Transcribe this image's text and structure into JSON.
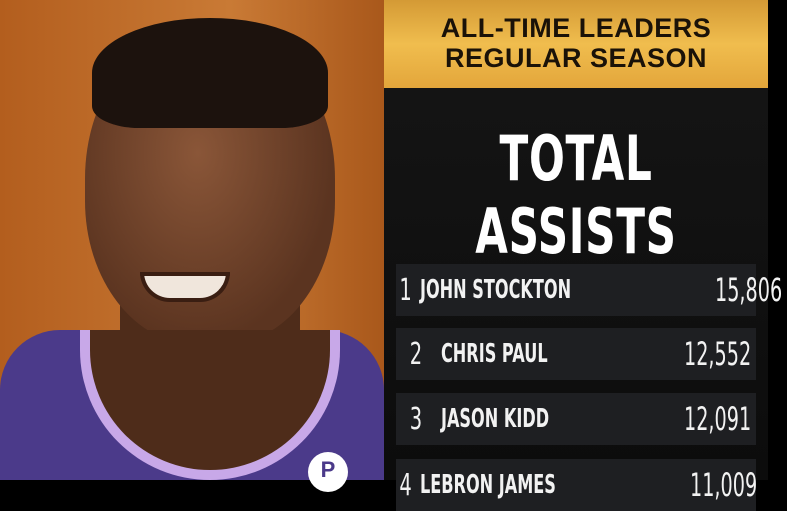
{
  "header": {
    "line1": "ALL-TIME LEADERS",
    "line2": "REGULAR SEASON"
  },
  "title": "TOTAL ASSISTS",
  "leaders": [
    {
      "rank": "1",
      "name": "JOHN STOCKTON",
      "value": "15,806"
    },
    {
      "rank": "2",
      "name": "CHRIS PAUL",
      "value": "12,552"
    },
    {
      "rank": "3",
      "name": "JASON KIDD",
      "value": "12,091"
    },
    {
      "rank": "4",
      "name": "LEBRON JAMES",
      "value": "11,009"
    }
  ],
  "colors": {
    "header_gold": "#f0bd4e",
    "panel_bg": "#121212",
    "jersey_purple": "#4b3a8a"
  }
}
